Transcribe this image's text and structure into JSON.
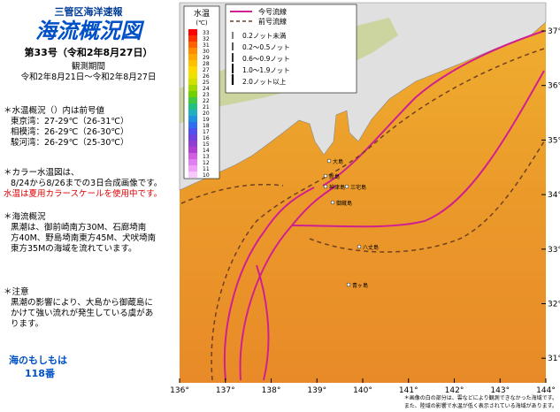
{
  "header": {
    "org": "三管区海洋速報",
    "title": "海流概況図",
    "issue": "第33号（令和2年8月27日）",
    "period_label": "観測期間",
    "period": "令和2年8月21日～令和2年8月27日"
  },
  "sections": [
    {
      "heading": "＊水温概況（）内は前号値",
      "lines": [
        "東京湾：27-29℃（26-31℃）",
        "相模湾：26-29℃（26-30℃）",
        "駿河湾：26-29℃（25-30℃）"
      ]
    },
    {
      "heading": "＊カラー水温図は、",
      "lines": [
        "8/24から8/26までの3日合成画像です。"
      ],
      "alert": "水温は夏用カラースケールを使用中です。"
    },
    {
      "heading": "＊海流概況",
      "lines": [
        "黒潮は、御前崎南方30M、石廊埼南",
        "方40M、野島埼南東方45M、犬吠埼南",
        "東方35Mの海域を流れています。"
      ]
    },
    {
      "heading": "＊注意",
      "lines": [
        "黒潮の影響により、大島から御蔵島に",
        "かけて強い流れが発生している虞があ",
        "ります。"
      ]
    }
  ],
  "footer": {
    "line1": "海のもしもは",
    "line2": "118番"
  },
  "map": {
    "scale_title": "水温",
    "scale_unit": "(℃)",
    "scale_ticks": [
      "33",
      "32",
      "31",
      "30",
      "29",
      "28",
      "27",
      "26",
      "25",
      "24",
      "23",
      "22",
      "21",
      "20",
      "19",
      "18",
      "17",
      "16",
      "15",
      "14",
      "13",
      "12",
      "11",
      "10"
    ],
    "legend": {
      "current": "今号流線",
      "previous": "前号流線",
      "speeds": [
        "0.2ノット未満",
        "0.2～0.5ノット",
        "0.6～0.9ノット",
        "1.0～1.9ノット",
        "2.0ノット以上"
      ]
    },
    "lon_labels": [
      "136°",
      "137°",
      "138°",
      "139°",
      "140°",
      "141°",
      "142°",
      "143°",
      "144°"
    ],
    "lat_labels": [
      "37°",
      "36°",
      "35°",
      "34°",
      "33°",
      "32°",
      "31°"
    ],
    "places": [
      "大島",
      "新島",
      "神津島",
      "三宅島",
      "御蔵島",
      "八丈島",
      "青ヶ島"
    ],
    "notes": [
      "＊画像の白の部分は、雲などにより観測できなかった海域です。",
      "また、陸域の影響で水温が低く表示されている海域があります。"
    ]
  }
}
